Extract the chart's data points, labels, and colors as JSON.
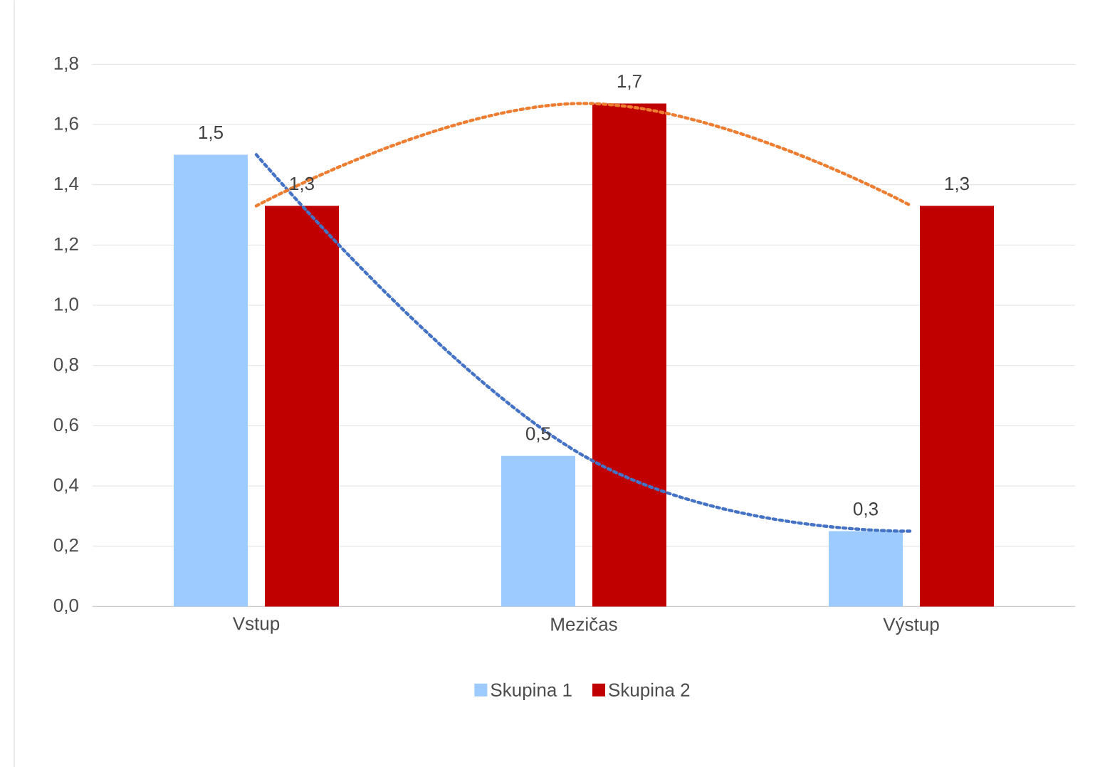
{
  "chart_data": {
    "type": "bar",
    "categories": [
      "Vstup",
      "Mezičas",
      "Výstup"
    ],
    "series": [
      {
        "name": "Skupina 1",
        "color": "#9dcbff",
        "values": [
          1.5,
          0.5,
          0.25
        ],
        "value_labels": [
          "1,5",
          "0,5",
          "0,3"
        ]
      },
      {
        "name": "Skupina 2",
        "color": "#c00000",
        "values": [
          1.33,
          1.67,
          1.33
        ],
        "value_labels": [
          "1,3",
          "1,7",
          "1,3"
        ]
      },
      {
        "type": "line",
        "color": "#4472c4",
        "line_style": "dotted",
        "values": [
          1.5,
          0.5,
          0.25
        ]
      },
      {
        "type": "line",
        "color": "#ed7d31",
        "line_style": "dotted",
        "values": [
          1.33,
          1.67,
          1.33
        ]
      }
    ],
    "ylim": [
      0,
      1.8
    ],
    "yticks": [
      {
        "value": 0,
        "label": "0,0"
      },
      {
        "value": 0.2,
        "label": "0,2"
      },
      {
        "value": 0.4,
        "label": "0,4"
      },
      {
        "value": 0.6,
        "label": "0,6"
      },
      {
        "value": 0.8,
        "label": "0,8"
      },
      {
        "value": 1.0,
        "label": "1,0"
      },
      {
        "value": 1.2,
        "label": "1,2"
      },
      {
        "value": 1.4,
        "label": "1,4"
      },
      {
        "value": 1.6,
        "label": "1,6"
      },
      {
        "value": 1.8,
        "label": "1,8"
      }
    ],
    "grid": "y",
    "legend": "bottom"
  }
}
